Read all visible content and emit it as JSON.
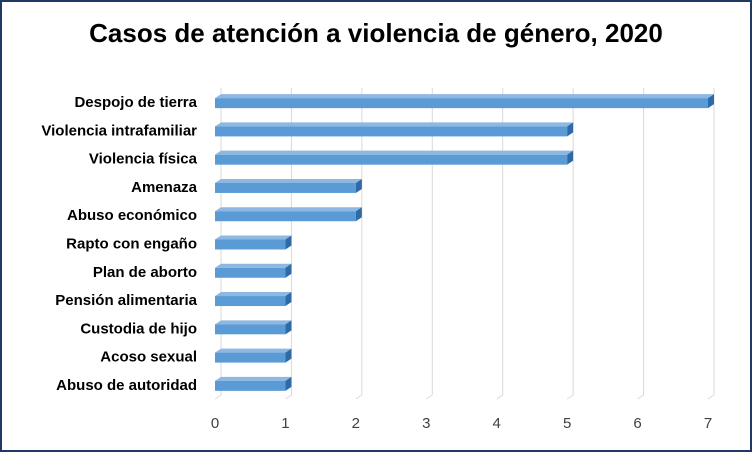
{
  "chart_data": {
    "type": "bar",
    "orientation": "horizontal",
    "title": "Casos de atención a violencia de género, 2020",
    "xlabel": "",
    "ylabel": "",
    "categories": [
      "Despojo de tierra",
      "Violencia intrafamiliar",
      "Violencia física",
      "Amenaza",
      "Abuso económico",
      "Rapto con engaño",
      "Plan de aborto",
      "Pensión alimentaria",
      "Custodia de hijo",
      "Acoso sexual",
      "Abuso de autoridad"
    ],
    "values": [
      7,
      5,
      5,
      2,
      2,
      1,
      1,
      1,
      1,
      1,
      1
    ],
    "xlim": [
      0,
      7
    ],
    "xticks": [
      "0",
      "1",
      "2",
      "3",
      "4",
      "5",
      "6",
      "7"
    ],
    "grid": "vertical",
    "legend": "none",
    "bar_style": "3d",
    "colors": {
      "bar_front": "#5B9BD5",
      "bar_top": "#8DB8E3",
      "bar_end": "#2E6AA8",
      "grid": "#D9D9D9",
      "frame": "#1F3864"
    }
  }
}
